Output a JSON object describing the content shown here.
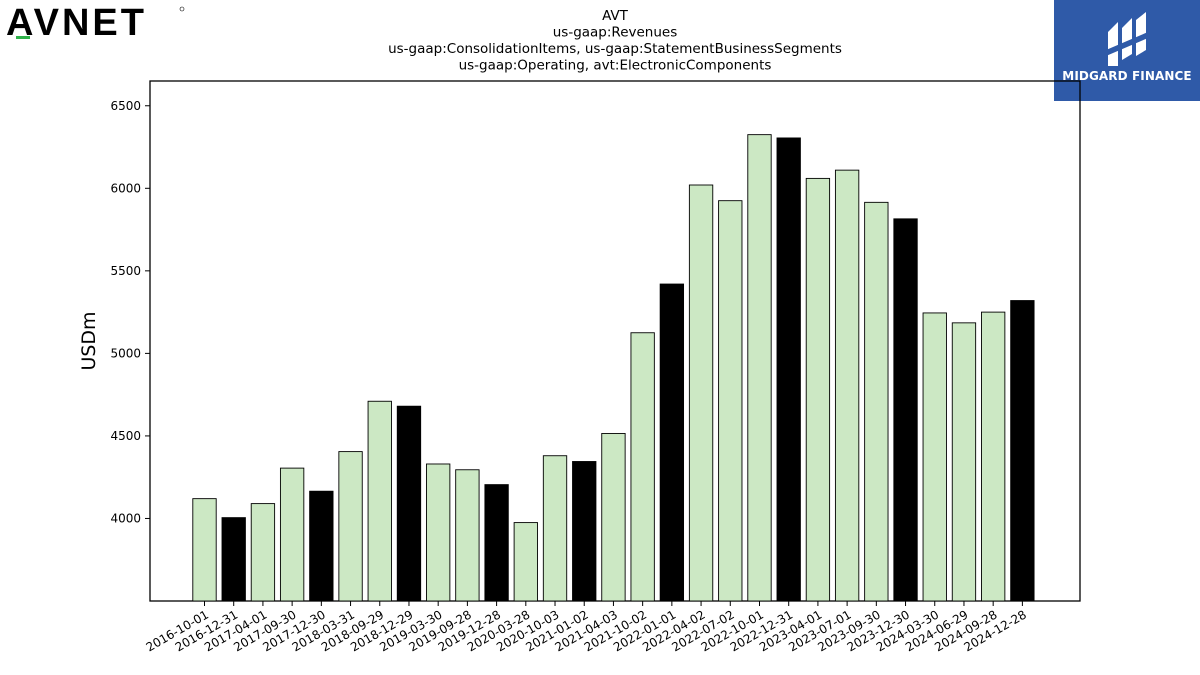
{
  "brand": {
    "company_logo_text": "AVNET",
    "partner_name": "MIDGARD FINANCE"
  },
  "colors": {
    "bar_default": "#cce8c4",
    "bar_highlight": "#000000",
    "bar_edge": "#000000",
    "logo_accent": "#2fb24a",
    "partner_bg": "#2f5aa8"
  },
  "chart_data": {
    "type": "bar",
    "title": [
      "AVT",
      "us-gaap:Revenues",
      "us-gaap:ConsolidationItems, us-gaap:StatementBusinessSegments",
      "us-gaap:Operating, avt:ElectronicComponents"
    ],
    "xlabel": "",
    "ylabel": "USDm",
    "ylim": [
      3500,
      6650
    ],
    "yticks": [
      4000,
      4500,
      5000,
      5500,
      6000,
      6500
    ],
    "grid": false,
    "categories": [
      "2016-10-01",
      "2016-12-31",
      "2017-04-01",
      "2017-09-30",
      "2017-12-30",
      "2018-03-31",
      "2018-09-29",
      "2018-12-29",
      "2019-03-30",
      "2019-09-28",
      "2019-12-28",
      "2020-03-28",
      "2020-10-03",
      "2021-01-02",
      "2021-04-03",
      "2021-10-02",
      "2022-01-01",
      "2022-04-02",
      "2022-07-02",
      "2022-10-01",
      "2022-12-31",
      "2023-04-01",
      "2023-07-01",
      "2023-09-30",
      "2023-12-30",
      "2024-03-30",
      "2024-06-29",
      "2024-09-28",
      "2024-12-28"
    ],
    "values": [
      4120,
      4005,
      4090,
      4305,
      4165,
      4405,
      4710,
      4680,
      4330,
      4295,
      4205,
      3975,
      4380,
      4345,
      4515,
      5125,
      5420,
      6020,
      5925,
      6325,
      6305,
      6060,
      6110,
      5915,
      5815,
      5245,
      5185,
      5250,
      5320
    ],
    "highlighted": [
      false,
      true,
      false,
      false,
      true,
      false,
      false,
      true,
      false,
      false,
      true,
      false,
      false,
      true,
      false,
      false,
      true,
      false,
      false,
      false,
      true,
      false,
      false,
      false,
      true,
      false,
      false,
      false,
      true
    ]
  }
}
